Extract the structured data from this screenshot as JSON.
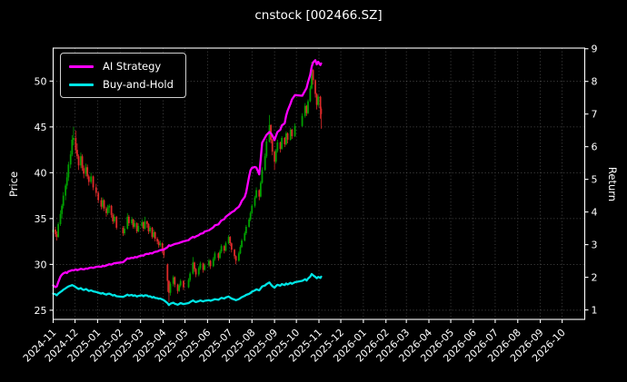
{
  "chart_data": {
    "type": "candlestick",
    "title": "cnstock [002466.SZ]",
    "grid": true,
    "legend_position": "upper-left",
    "x_domain": [
      "2024-11-01",
      "2026-11-01"
    ],
    "x_tick_labels": [
      "2024-11",
      "2024-12",
      "2025-01",
      "2025-02",
      "2025-03",
      "2025-04",
      "2025-05",
      "2025-06",
      "2025-07",
      "2025-08",
      "2025-09",
      "2025-10",
      "2025-11",
      "2025-12",
      "2026-01",
      "2026-02",
      "2026-03",
      "2026-04",
      "2026-05",
      "2026-06",
      "2026-07",
      "2026-08",
      "2026-09",
      "2026-10"
    ],
    "price_axis": {
      "label": "Price",
      "ticks": [
        25,
        30,
        35,
        40,
        45,
        50
      ],
      "lim": [
        24.0,
        53.6
      ]
    },
    "return_axis": {
      "label": "Return",
      "ticks": [
        1,
        2,
        3,
        4,
        5,
        6,
        7,
        8,
        9
      ],
      "lim": [
        0.71,
        9.02
      ]
    },
    "colors": {
      "background": "#000000",
      "text": "#ffffff",
      "grid": "#aaaaaa",
      "up": "#00A000",
      "down": "#DD2A2A"
    },
    "candles": [
      [
        "2024-11-01",
        33.5,
        34.3,
        32.9,
        33.8
      ],
      [
        "2024-11-04",
        33.8,
        34.1,
        33.0,
        33.3
      ],
      [
        "2024-11-06",
        33.3,
        33.6,
        32.6,
        33.0
      ],
      [
        "2024-11-08",
        33.0,
        34.6,
        32.9,
        34.4
      ],
      [
        "2024-11-11",
        34.4,
        35.9,
        34.2,
        35.5
      ],
      [
        "2024-11-13",
        35.5,
        36.6,
        35.0,
        36.4
      ],
      [
        "2024-11-15",
        36.4,
        37.9,
        36.1,
        37.5
      ],
      [
        "2024-11-18",
        37.5,
        38.8,
        37.0,
        38.6
      ],
      [
        "2024-11-20",
        38.6,
        40.0,
        38.2,
        39.5
      ],
      [
        "2024-11-22",
        39.5,
        41.2,
        39.1,
        40.9
      ],
      [
        "2024-11-25",
        40.9,
        42.4,
        40.5,
        42.0
      ],
      [
        "2024-11-27",
        42.0,
        44.1,
        41.8,
        43.6
      ],
      [
        "2024-11-29",
        43.6,
        45.0,
        43.0,
        43.8
      ],
      [
        "2024-12-02",
        43.8,
        44.6,
        42.1,
        42.5
      ],
      [
        "2024-12-04",
        42.5,
        43.2,
        41.5,
        41.8
      ],
      [
        "2024-12-06",
        41.8,
        42.0,
        40.3,
        40.8
      ],
      [
        "2024-12-09",
        40.8,
        42.2,
        40.5,
        41.8
      ],
      [
        "2024-12-11",
        41.8,
        42.0,
        40.2,
        40.5
      ],
      [
        "2024-12-13",
        40.5,
        40.8,
        39.4,
        39.9
      ],
      [
        "2024-12-16",
        39.9,
        41.0,
        39.6,
        40.6
      ],
      [
        "2024-12-18",
        40.6,
        40.9,
        39.3,
        39.6
      ],
      [
        "2024-12-20",
        39.6,
        39.8,
        38.6,
        39.0
      ],
      [
        "2024-12-23",
        39.0,
        40.0,
        38.8,
        39.6
      ],
      [
        "2024-12-26",
        39.6,
        39.7,
        38.1,
        38.4
      ],
      [
        "2024-12-30",
        38.4,
        38.8,
        37.4,
        37.8
      ],
      [
        "2025-01-02",
        37.8,
        38.0,
        36.7,
        37.0
      ],
      [
        "2025-01-06",
        37.0,
        37.3,
        36.0,
        36.3
      ],
      [
        "2025-01-08",
        36.3,
        37.3,
        36.1,
        37.0
      ],
      [
        "2025-01-10",
        37.0,
        37.1,
        35.8,
        36.1
      ],
      [
        "2025-01-13",
        36.1,
        36.3,
        35.2,
        35.6
      ],
      [
        "2025-01-15",
        35.6,
        36.5,
        35.4,
        36.2
      ],
      [
        "2025-01-17",
        36.2,
        36.6,
        35.6,
        36.4
      ],
      [
        "2025-01-20",
        36.4,
        36.5,
        35.1,
        35.4
      ],
      [
        "2025-01-22",
        35.4,
        35.6,
        34.4,
        34.7
      ],
      [
        "2025-01-24",
        34.7,
        35.5,
        34.5,
        35.2
      ],
      [
        "2025-01-27",
        35.2,
        35.3,
        33.8,
        34.0
      ],
      [
        "2025-02-05",
        34.0,
        34.2,
        33.1,
        33.4
      ],
      [
        "2025-02-07",
        33.4,
        34.2,
        33.2,
        33.9
      ],
      [
        "2025-02-11",
        33.9,
        35.6,
        33.8,
        35.2
      ],
      [
        "2025-02-13",
        35.2,
        35.4,
        34.2,
        34.5
      ],
      [
        "2025-02-17",
        34.5,
        35.2,
        34.3,
        34.9
      ],
      [
        "2025-02-19",
        34.9,
        35.0,
        33.9,
        34.1
      ],
      [
        "2025-02-21",
        34.1,
        34.8,
        33.9,
        34.5
      ],
      [
        "2025-02-24",
        34.5,
        34.6,
        33.4,
        33.6
      ],
      [
        "2025-02-26",
        33.6,
        34.5,
        33.5,
        34.2
      ],
      [
        "2025-03-03",
        34.2,
        34.9,
        34.0,
        34.6
      ],
      [
        "2025-03-05",
        34.6,
        34.7,
        33.6,
        33.9
      ],
      [
        "2025-03-07",
        33.9,
        35.2,
        33.8,
        34.7
      ],
      [
        "2025-03-10",
        34.7,
        34.8,
        34.0,
        34.4
      ],
      [
        "2025-03-12",
        34.4,
        34.5,
        33.3,
        33.6
      ],
      [
        "2025-03-14",
        33.6,
        34.2,
        33.4,
        34.0
      ],
      [
        "2025-03-17",
        34.0,
        34.1,
        32.8,
        33.0
      ],
      [
        "2025-03-19",
        33.0,
        33.8,
        32.9,
        33.5
      ],
      [
        "2025-03-21",
        33.5,
        33.6,
        32.5,
        32.8
      ],
      [
        "2025-03-24",
        32.8,
        33.0,
        32.2,
        32.5
      ],
      [
        "2025-03-26",
        32.5,
        32.7,
        31.8,
        32.1
      ],
      [
        "2025-03-28",
        32.1,
        32.6,
        31.9,
        32.3
      ],
      [
        "2025-03-31",
        32.3,
        32.4,
        31.2,
        31.6
      ],
      [
        "2025-04-02",
        31.6,
        31.8,
        30.7,
        31.0
      ],
      [
        "2025-04-07",
        30.0,
        30.1,
        27.0,
        28.2
      ],
      [
        "2025-04-09",
        28.2,
        28.3,
        25.9,
        26.9
      ],
      [
        "2025-04-11",
        26.9,
        28.1,
        26.6,
        27.9
      ],
      [
        "2025-04-15",
        27.9,
        28.8,
        27.6,
        28.6
      ],
      [
        "2025-04-17",
        28.6,
        28.7,
        27.5,
        27.8
      ],
      [
        "2025-04-21",
        27.8,
        27.9,
        26.8,
        27.1
      ],
      [
        "2025-04-23",
        27.1,
        27.9,
        27.0,
        27.7
      ],
      [
        "2025-04-25",
        27.7,
        28.4,
        27.5,
        28.2
      ],
      [
        "2025-04-29",
        28.2,
        28.3,
        27.2,
        27.5
      ],
      [
        "2025-05-06",
        27.5,
        28.5,
        27.4,
        28.3
      ],
      [
        "2025-05-08",
        28.3,
        29.2,
        28.1,
        29.0
      ],
      [
        "2025-05-12",
        29.0,
        30.8,
        28.9,
        30.2
      ],
      [
        "2025-05-14",
        30.2,
        30.3,
        29.2,
        29.5
      ],
      [
        "2025-05-16",
        29.5,
        29.6,
        28.6,
        28.9
      ],
      [
        "2025-05-20",
        28.9,
        29.8,
        28.7,
        29.6
      ],
      [
        "2025-05-22",
        29.6,
        30.3,
        29.4,
        30.1
      ],
      [
        "2025-05-26",
        30.1,
        30.2,
        29.1,
        29.4
      ],
      [
        "2025-05-28",
        29.4,
        30.1,
        29.3,
        29.9
      ],
      [
        "2025-06-03",
        29.9,
        30.6,
        29.7,
        30.4
      ],
      [
        "2025-06-05",
        30.4,
        30.5,
        29.5,
        29.8
      ],
      [
        "2025-06-09",
        29.8,
        30.8,
        29.7,
        30.6
      ],
      [
        "2025-06-11",
        30.6,
        31.4,
        30.4,
        31.2
      ],
      [
        "2025-06-16",
        31.2,
        31.3,
        30.4,
        30.7
      ],
      [
        "2025-06-18",
        30.7,
        31.6,
        30.6,
        31.4
      ],
      [
        "2025-06-20",
        31.4,
        32.2,
        31.2,
        32.0
      ],
      [
        "2025-06-24",
        32.0,
        32.1,
        31.2,
        31.5
      ],
      [
        "2025-06-26",
        31.5,
        32.5,
        31.4,
        32.3
      ],
      [
        "2025-06-30",
        32.3,
        33.2,
        32.2,
        33.0
      ],
      [
        "2025-07-02",
        33.0,
        33.1,
        32.0,
        32.3
      ],
      [
        "2025-07-04",
        32.3,
        32.4,
        31.3,
        31.6
      ],
      [
        "2025-07-08",
        31.6,
        31.7,
        30.6,
        30.9
      ],
      [
        "2025-07-10",
        30.9,
        31.0,
        30.0,
        30.4
      ],
      [
        "2025-07-14",
        30.4,
        31.4,
        30.3,
        31.2
      ],
      [
        "2025-07-16",
        31.2,
        32.1,
        31.1,
        31.9
      ],
      [
        "2025-07-18",
        31.9,
        32.8,
        31.8,
        32.6
      ],
      [
        "2025-07-22",
        32.6,
        33.6,
        32.5,
        33.4
      ],
      [
        "2025-07-24",
        33.4,
        34.3,
        33.2,
        34.1
      ],
      [
        "2025-07-28",
        34.1,
        35.1,
        34.0,
        34.9
      ],
      [
        "2025-07-30",
        34.9,
        35.8,
        34.7,
        35.6
      ],
      [
        "2025-08-01",
        35.6,
        36.6,
        35.5,
        36.4
      ],
      [
        "2025-08-05",
        36.4,
        37.5,
        36.2,
        37.3
      ],
      [
        "2025-08-07",
        37.3,
        38.4,
        37.2,
        38.1
      ],
      [
        "2025-08-11",
        38.1,
        38.2,
        37.0,
        37.4
      ],
      [
        "2025-08-13",
        37.4,
        39.1,
        37.3,
        38.9
      ],
      [
        "2025-08-15",
        38.9,
        40.6,
        38.8,
        40.3
      ],
      [
        "2025-08-19",
        40.3,
        42.1,
        40.2,
        41.8
      ],
      [
        "2025-08-21",
        41.8,
        43.7,
        41.6,
        43.4
      ],
      [
        "2025-08-25",
        43.4,
        46.3,
        43.3,
        45.2
      ],
      [
        "2025-08-27",
        45.2,
        45.3,
        43.2,
        43.6
      ],
      [
        "2025-08-29",
        43.6,
        43.7,
        41.9,
        42.3
      ],
      [
        "2025-09-01",
        42.3,
        42.4,
        40.3,
        41.2
      ],
      [
        "2025-09-03",
        41.2,
        42.6,
        41.0,
        42.4
      ],
      [
        "2025-09-05",
        42.4,
        43.6,
        42.2,
        43.3
      ],
      [
        "2025-09-09",
        43.3,
        43.4,
        42.2,
        42.6
      ],
      [
        "2025-09-11",
        42.6,
        44.0,
        42.5,
        43.8
      ],
      [
        "2025-09-15",
        43.8,
        43.9,
        42.8,
        43.1
      ],
      [
        "2025-09-17",
        43.1,
        44.5,
        43.0,
        44.3
      ],
      [
        "2025-09-19",
        44.3,
        44.4,
        43.2,
        43.6
      ],
      [
        "2025-09-23",
        43.6,
        44.9,
        43.5,
        44.7
      ],
      [
        "2025-09-25",
        44.7,
        44.8,
        43.7,
        44.0
      ],
      [
        "2025-09-29",
        44.0,
        45.4,
        43.9,
        45.1
      ],
      [
        "2025-10-09",
        45.1,
        46.5,
        45.0,
        46.2
      ],
      [
        "2025-10-13",
        46.2,
        47.6,
        46.0,
        47.3
      ],
      [
        "2025-10-15",
        47.3,
        47.4,
        46.2,
        46.5
      ],
      [
        "2025-10-17",
        46.5,
        48.0,
        46.4,
        47.8
      ],
      [
        "2025-10-20",
        47.8,
        49.5,
        47.7,
        49.2
      ],
      [
        "2025-10-22",
        49.2,
        52.1,
        49.1,
        51.2
      ],
      [
        "2025-10-24",
        51.2,
        51.3,
        49.6,
        50.1
      ],
      [
        "2025-10-27",
        50.1,
        50.2,
        48.2,
        48.6
      ],
      [
        "2025-10-29",
        48.6,
        48.7,
        46.9,
        47.4
      ],
      [
        "2025-10-31",
        47.4,
        48.5,
        47.2,
        48.3
      ],
      [
        "2025-11-03",
        48.3,
        48.4,
        45.9,
        47.0
      ],
      [
        "2025-11-04",
        47.0,
        47.2,
        44.8,
        46.4
      ]
    ],
    "series": [
      {
        "name": "AI Strategy",
        "axis": "return",
        "color": "#FF00FF",
        "values": [
          1.75,
          1.7,
          1.72,
          1.85,
          2.02,
          2.08,
          2.12,
          2.15,
          2.13,
          2.18,
          2.2,
          2.22,
          2.21,
          2.24,
          2.22,
          2.23,
          2.26,
          2.25,
          2.24,
          2.27,
          2.26,
          2.28,
          2.3,
          2.29,
          2.32,
          2.33,
          2.32,
          2.35,
          2.34,
          2.36,
          2.38,
          2.4,
          2.39,
          2.41,
          2.43,
          2.44,
          2.46,
          2.5,
          2.58,
          2.57,
          2.6,
          2.59,
          2.62,
          2.61,
          2.64,
          2.67,
          2.66,
          2.7,
          2.72,
          2.71,
          2.74,
          2.73,
          2.76,
          2.78,
          2.79,
          2.81,
          2.83,
          2.84,
          2.85,
          2.92,
          2.98,
          2.96,
          3.0,
          3.02,
          3.04,
          3.05,
          3.07,
          3.1,
          3.14,
          3.18,
          3.24,
          3.22,
          3.25,
          3.29,
          3.33,
          3.35,
          3.4,
          3.44,
          3.47,
          3.53,
          3.59,
          3.62,
          3.68,
          3.74,
          3.78,
          3.85,
          3.92,
          3.95,
          3.99,
          4.04,
          4.09,
          4.16,
          4.24,
          4.34,
          4.46,
          4.6,
          5.08,
          5.28,
          5.35,
          5.38,
          5.36,
          5.15,
          5.62,
          6.12,
          6.28,
          6.36,
          6.45,
          6.41,
          6.34,
          6.2,
          6.33,
          6.45,
          6.52,
          6.65,
          6.72,
          6.95,
          7.1,
          7.32,
          7.45,
          7.58,
          7.56,
          7.72,
          7.8,
          7.98,
          8.2,
          8.45,
          8.58,
          8.65,
          8.52,
          8.6,
          8.5,
          8.55
        ]
      },
      {
        "name": "Buy-and-Hold",
        "axis": "return",
        "color": "#00E5E5",
        "values": [
          1.5,
          1.48,
          1.45,
          1.5,
          1.55,
          1.58,
          1.62,
          1.66,
          1.69,
          1.72,
          1.74,
          1.76,
          1.74,
          1.7,
          1.67,
          1.64,
          1.67,
          1.63,
          1.61,
          1.64,
          1.61,
          1.58,
          1.6,
          1.57,
          1.55,
          1.53,
          1.5,
          1.52,
          1.49,
          1.47,
          1.49,
          1.5,
          1.47,
          1.44,
          1.46,
          1.42,
          1.4,
          1.42,
          1.47,
          1.44,
          1.46,
          1.43,
          1.45,
          1.41,
          1.43,
          1.45,
          1.42,
          1.45,
          1.44,
          1.41,
          1.42,
          1.38,
          1.4,
          1.37,
          1.36,
          1.34,
          1.35,
          1.32,
          1.3,
          1.21,
          1.15,
          1.19,
          1.22,
          1.19,
          1.16,
          1.18,
          1.21,
          1.18,
          1.21,
          1.24,
          1.29,
          1.26,
          1.24,
          1.27,
          1.29,
          1.26,
          1.28,
          1.3,
          1.28,
          1.31,
          1.33,
          1.31,
          1.34,
          1.37,
          1.35,
          1.38,
          1.41,
          1.38,
          1.35,
          1.32,
          1.3,
          1.33,
          1.36,
          1.39,
          1.43,
          1.46,
          1.49,
          1.52,
          1.56,
          1.6,
          1.63,
          1.6,
          1.66,
          1.72,
          1.75,
          1.79,
          1.84,
          1.78,
          1.73,
          1.68,
          1.73,
          1.77,
          1.74,
          1.79,
          1.76,
          1.81,
          1.78,
          1.83,
          1.8,
          1.85,
          1.89,
          1.94,
          1.9,
          1.96,
          2.02,
          2.1,
          2.06,
          2.01,
          1.97,
          2.01,
          1.98,
          2.02
        ]
      }
    ]
  }
}
